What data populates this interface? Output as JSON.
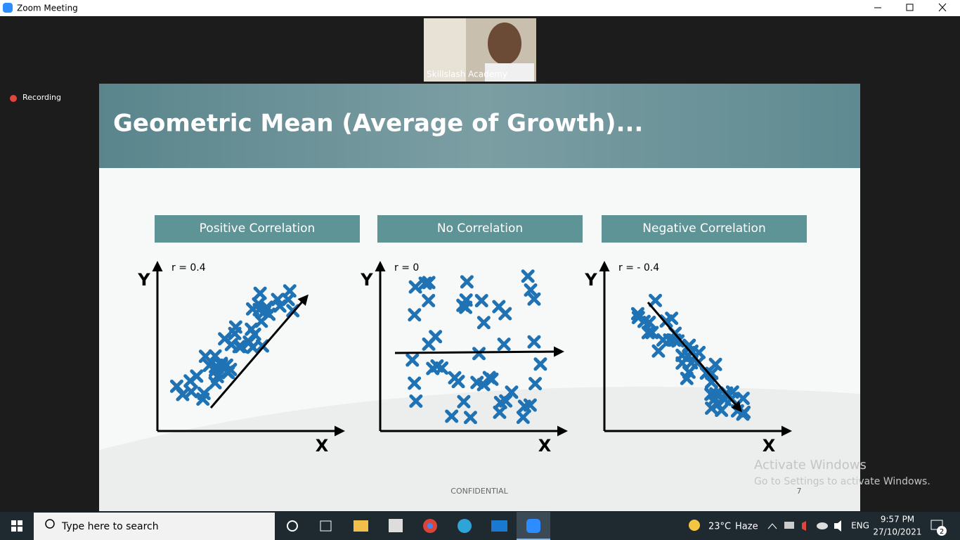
{
  "window": {
    "title": "Zoom Meeting"
  },
  "video": {
    "participant": "Skillslash Academy"
  },
  "recording": "Recording",
  "slide": {
    "title": "Geometric Mean (Average of Growth)...",
    "panels": [
      {
        "title": "Positive Correlation",
        "r": "r = 0.4",
        "y_axis": "Y",
        "x_axis": "X"
      },
      {
        "title": "No Correlation",
        "r": "r = 0",
        "y_axis": "Y",
        "x_axis": "X"
      },
      {
        "title": "Negative Correlation",
        "r": "r = - 0.4",
        "y_axis": "Y",
        "x_axis": "X"
      }
    ],
    "footer": "CONFIDENTIAL",
    "page": "7"
  },
  "watermark": {
    "title": "Activate Windows",
    "subtitle": "Go to Settings to activate Windows."
  },
  "taskbar": {
    "search": "Type here to search",
    "temperature": "23°C",
    "weather": "Haze",
    "language": "ENG",
    "time": "9:57 PM",
    "date": "27/10/2021",
    "notifications": "2"
  }
}
